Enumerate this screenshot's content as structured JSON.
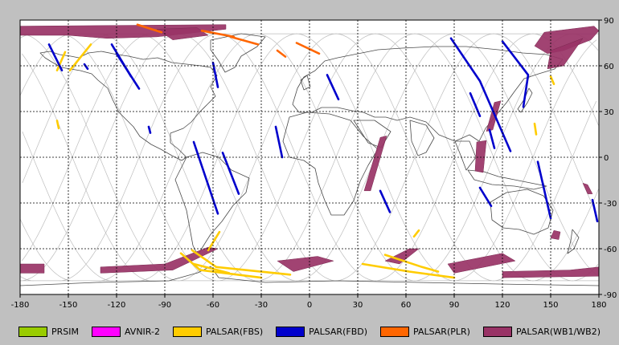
{
  "colors": {
    "background": "#c0c0c0",
    "map": "#ffffff",
    "grid": "#000000",
    "orbit": "#bdbdbd",
    "coast": "#4a4a4a"
  },
  "chart_data": {
    "type": "map",
    "xlim": [
      -180,
      180
    ],
    "ylim": [
      -90,
      90
    ],
    "x_ticks": [
      "-180",
      "-150",
      "-120",
      "-90",
      "-60",
      "-30",
      "0",
      "30",
      "60",
      "90",
      "120",
      "150",
      "180"
    ],
    "y_ticks": [
      "90",
      "60",
      "30",
      "0",
      "-30",
      "-60",
      "-90"
    ],
    "grid": true,
    "legend_position": "bottom",
    "legend": [
      {
        "name": "PRSIM",
        "color": "#99cc00"
      },
      {
        "name": "AVNIR-2",
        "color": "#ff00ff"
      },
      {
        "name": "PALSAR(FBS)",
        "color": "#ffcc00"
      },
      {
        "name": "PALSAR(FBD)",
        "color": "#0000cc"
      },
      {
        "name": "PALSAR(PLR)",
        "color": "#ff6600"
      },
      {
        "name": "PALSAR(WB1/WB2)",
        "color": "#993366"
      }
    ],
    "segments": [
      {
        "series": 2,
        "points": [
          [
            -152,
            69
          ],
          [
            -157,
            57
          ]
        ]
      },
      {
        "series": 2,
        "points": [
          [
            -136,
            74
          ],
          [
            -149,
            57
          ]
        ]
      },
      {
        "series": 2,
        "points": [
          [
            -157,
            24
          ],
          [
            -156,
            19
          ]
        ]
      },
      {
        "series": 2,
        "points": [
          [
            -56,
            -49
          ],
          [
            -63,
            -61
          ]
        ]
      },
      {
        "series": 2,
        "points": [
          [
            -73,
            -61
          ],
          [
            -58,
            -72
          ],
          [
            -12,
            -77
          ]
        ]
      },
      {
        "series": 2,
        "points": [
          [
            -80,
            -63
          ],
          [
            -68,
            -74
          ],
          [
            -30,
            -79
          ]
        ]
      },
      {
        "series": 2,
        "points": [
          [
            -72,
            -70
          ],
          [
            -50,
            -76
          ]
        ]
      },
      {
        "series": 2,
        "points": [
          [
            33,
            -70
          ],
          [
            62,
            -75
          ],
          [
            90,
            -79
          ]
        ]
      },
      {
        "series": 2,
        "points": [
          [
            47,
            -64
          ],
          [
            70,
            -72
          ],
          [
            80,
            -75
          ]
        ]
      },
      {
        "series": 2,
        "points": [
          [
            68,
            -48
          ],
          [
            65,
            -52
          ]
        ]
      },
      {
        "series": 2,
        "points": [
          [
            141,
            15
          ],
          [
            140,
            22
          ]
        ]
      },
      {
        "series": 2,
        "points": [
          [
            152,
            48
          ],
          [
            150,
            53
          ]
        ]
      },
      {
        "series": 3,
        "points": [
          [
            -162,
            74
          ],
          [
            -154,
            57
          ]
        ]
      },
      {
        "series": 3,
        "points": [
          [
            -123,
            74
          ],
          [
            -111,
            53
          ]
        ]
      },
      {
        "series": 3,
        "points": [
          [
            -120,
            68
          ],
          [
            -106,
            45
          ]
        ]
      },
      {
        "series": 3,
        "points": [
          [
            -140,
            61
          ],
          [
            -138,
            58
          ]
        ]
      },
      {
        "series": 3,
        "points": [
          [
            -60,
            62
          ],
          [
            -57,
            46
          ]
        ]
      },
      {
        "series": 3,
        "points": [
          [
            -72,
            10
          ],
          [
            -57,
            -37
          ]
        ]
      },
      {
        "series": 3,
        "points": [
          [
            -54,
            3
          ],
          [
            -44,
            -24
          ]
        ]
      },
      {
        "series": 3,
        "points": [
          [
            -100,
            20
          ],
          [
            -99,
            16
          ]
        ]
      },
      {
        "series": 3,
        "points": [
          [
            -21,
            20
          ],
          [
            -17,
            0
          ]
        ]
      },
      {
        "series": 3,
        "points": [
          [
            11,
            54
          ],
          [
            18,
            38
          ]
        ]
      },
      {
        "series": 3,
        "points": [
          [
            44,
            -22
          ],
          [
            50,
            -36
          ]
        ]
      },
      {
        "series": 3,
        "points": [
          [
            88,
            78
          ],
          [
            106,
            50
          ],
          [
            125,
            4
          ]
        ]
      },
      {
        "series": 3,
        "points": [
          [
            100,
            42
          ],
          [
            106,
            27
          ]
        ]
      },
      {
        "series": 3,
        "points": [
          [
            112,
            18
          ],
          [
            115,
            6
          ]
        ]
      },
      {
        "series": 3,
        "points": [
          [
            106,
            -20
          ],
          [
            113,
            -32
          ]
        ]
      },
      {
        "series": 3,
        "points": [
          [
            120,
            76
          ],
          [
            136,
            54
          ],
          [
            133,
            33
          ]
        ]
      },
      {
        "series": 3,
        "points": [
          [
            142,
            -3
          ],
          [
            150,
            -40
          ]
        ]
      },
      {
        "series": 3,
        "points": [
          [
            176,
            -28
          ],
          [
            179,
            -42
          ]
        ]
      },
      {
        "series": 4,
        "points": [
          [
            -107,
            87
          ],
          [
            -92,
            82
          ]
        ]
      },
      {
        "series": 4,
        "points": [
          [
            -49,
            79
          ],
          [
            -32,
            74
          ]
        ]
      },
      {
        "series": 4,
        "points": [
          [
            -67,
            83
          ],
          [
            -47,
            79
          ]
        ]
      },
      {
        "series": 4,
        "points": [
          [
            -20,
            70
          ],
          [
            -15,
            66
          ]
        ]
      },
      {
        "series": 4,
        "points": [
          [
            -8,
            75
          ],
          [
            6,
            68
          ]
        ]
      }
    ],
    "regions": [
      {
        "series": 5,
        "points": [
          [
            -180,
            86
          ],
          [
            -52,
            87
          ],
          [
            -52,
            84
          ],
          [
            -95,
            79
          ],
          [
            -126,
            78
          ],
          [
            -150,
            80
          ],
          [
            -180,
            80
          ]
        ]
      },
      {
        "series": 5,
        "points": [
          [
            -95,
            84
          ],
          [
            -70,
            85
          ],
          [
            -63,
            80
          ],
          [
            -85,
            77
          ]
        ]
      },
      {
        "series": 5,
        "points": [
          [
            146,
            82
          ],
          [
            177,
            86
          ],
          [
            180,
            83
          ],
          [
            175,
            77
          ],
          [
            158,
            70
          ],
          [
            148,
            68
          ],
          [
            140,
            73
          ]
        ]
      },
      {
        "series": 5,
        "points": [
          [
            150,
            70
          ],
          [
            170,
            78
          ],
          [
            158,
            60
          ],
          [
            148,
            58
          ]
        ]
      },
      {
        "series": 5,
        "points": [
          [
            44,
            13
          ],
          [
            48,
            14
          ],
          [
            38,
            -22
          ],
          [
            34,
            -22
          ]
        ]
      },
      {
        "series": 5,
        "points": [
          [
            115,
            36
          ],
          [
            119,
            37
          ],
          [
            114,
            18
          ],
          [
            110,
            17
          ]
        ]
      },
      {
        "series": 5,
        "points": [
          [
            104,
            10
          ],
          [
            110,
            11
          ],
          [
            108,
            -10
          ],
          [
            103,
            -9
          ]
        ]
      },
      {
        "series": 5,
        "points": [
          [
            170,
            -17
          ],
          [
            173,
            -18
          ],
          [
            176,
            -24
          ],
          [
            173,
            -24
          ]
        ]
      },
      {
        "series": 5,
        "points": [
          [
            152,
            -48
          ],
          [
            156,
            -49
          ],
          [
            155,
            -54
          ],
          [
            150,
            -53
          ]
        ]
      },
      {
        "series": 5,
        "points": [
          [
            -180,
            -70
          ],
          [
            -165,
            -70
          ],
          [
            -165,
            -76
          ],
          [
            -180,
            -76
          ]
        ]
      },
      {
        "series": 5,
        "points": [
          [
            -130,
            -76
          ],
          [
            -85,
            -74
          ],
          [
            -57,
            -60
          ],
          [
            -63,
            -59
          ],
          [
            -90,
            -70
          ],
          [
            -130,
            -72
          ]
        ]
      },
      {
        "series": 5,
        "points": [
          [
            -20,
            -68
          ],
          [
            5,
            -65
          ],
          [
            15,
            -68
          ],
          [
            -10,
            -75
          ]
        ]
      },
      {
        "series": 5,
        "points": [
          [
            47,
            -68
          ],
          [
            62,
            -60
          ],
          [
            68,
            -60
          ],
          [
            56,
            -70
          ]
        ]
      },
      {
        "series": 5,
        "points": [
          [
            86,
            -70
          ],
          [
            120,
            -63
          ],
          [
            128,
            -68
          ],
          [
            90,
            -76
          ]
        ]
      },
      {
        "series": 5,
        "points": [
          [
            120,
            -75
          ],
          [
            162,
            -74
          ],
          [
            180,
            -72
          ],
          [
            180,
            -78
          ],
          [
            120,
            -79
          ]
        ]
      }
    ]
  }
}
